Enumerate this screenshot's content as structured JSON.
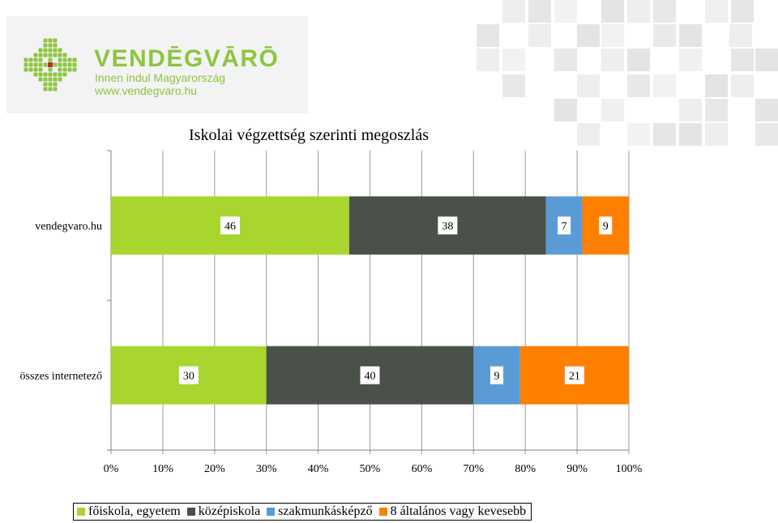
{
  "logo": {
    "brand": "VENDĒGVĀRŌ",
    "tagline": "Innen indul Magyarország",
    "url": "www.vendegvaro.hu",
    "color": "#8cc63f",
    "mark_color": "#8cc63f",
    "accent_color": "#c1272d"
  },
  "chart_data": {
    "type": "bar",
    "orientation": "horizontal",
    "stacked": "percent",
    "title": "Iskolai végzettség szerinti megoszlás",
    "categories": [
      "vendegvaro.hu",
      "összes internetező"
    ],
    "series": [
      {
        "name": "főiskola, egyetem",
        "color": "#a8d52e",
        "values": [
          46,
          30
        ]
      },
      {
        "name": "középiskola",
        "color": "#4a5148",
        "values": [
          38,
          40
        ]
      },
      {
        "name": "szakmunkásképző",
        "color": "#5b9bd5",
        "values": [
          7,
          9
        ]
      },
      {
        "name": "8 általános vagy kevesebb",
        "color": "#ff7f00",
        "values": [
          9,
          21
        ]
      }
    ],
    "xlim": [
      0,
      100
    ],
    "xticks": [
      "0%",
      "10%",
      "20%",
      "30%",
      "40%",
      "50%",
      "60%",
      "70%",
      "80%",
      "90%",
      "100%"
    ],
    "grid": true,
    "legend": "bottom"
  }
}
